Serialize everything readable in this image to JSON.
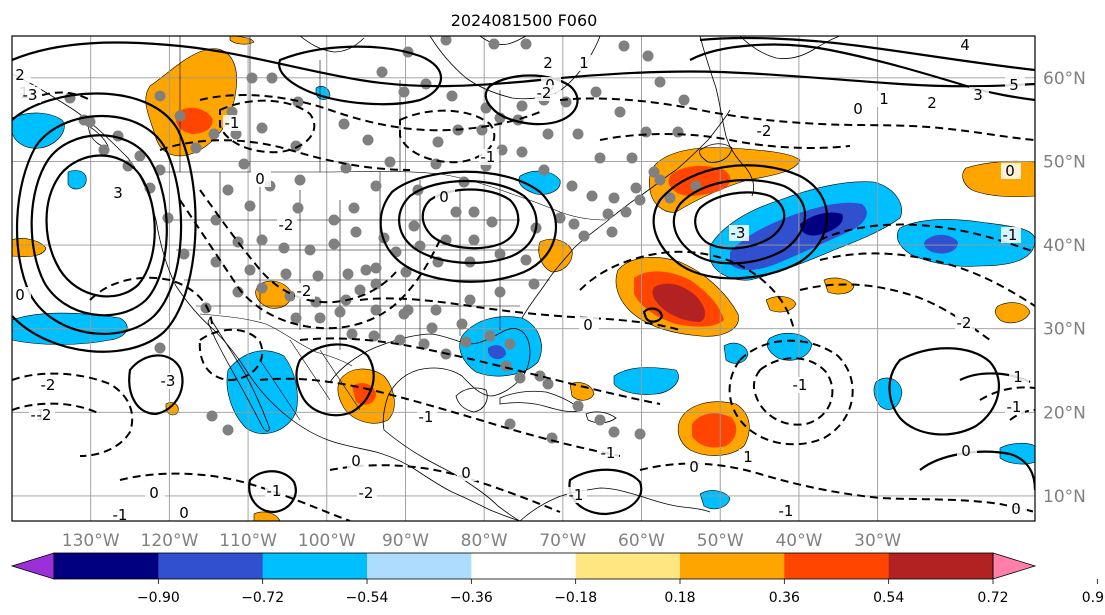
{
  "title": "2024081500 F060",
  "map": {
    "lon_ticks": [
      "130°W",
      "120°W",
      "110°W",
      "100°W",
      "90°W",
      "80°W",
      "70°W",
      "60°W",
      "50°W",
      "40°W",
      "30°W"
    ],
    "lat_ticks": [
      "60°N",
      "50°N",
      "40°N",
      "30°N",
      "20°N",
      "10°N"
    ],
    "lon_range": [
      -140,
      -10
    ],
    "lat_range": [
      7,
      65
    ],
    "contour_labels": [
      "2",
      "1",
      "0",
      "3",
      "-2",
      "-1",
      "-3",
      "5",
      "4",
      "0",
      "1",
      "2",
      "-2",
      "-3",
      "3",
      "2",
      "0",
      "-1",
      "-2",
      "0",
      "1",
      "-1",
      "0",
      "-2",
      "-3",
      "-2",
      "0",
      "-1",
      "-2",
      "0",
      "-1",
      "-1",
      "-1",
      "0",
      "1",
      "0",
      "-1",
      "-2",
      "-2",
      "-1",
      "0",
      "-1",
      "0",
      "-1",
      "1",
      "0",
      "-1",
      "0",
      "0"
    ]
  },
  "colorbar": {
    "tick_labels": [
      "−0.90",
      "−0.72",
      "−0.54",
      "−0.36",
      "−0.18",
      "0.18",
      "0.36",
      "0.54",
      "0.72",
      "0.90"
    ],
    "colors": {
      "under": "#9b30d9",
      "c1": "#000080",
      "c2": "#3050d0",
      "c3": "#00bfff",
      "c4": "#aedcff",
      "c5": "#ffffff",
      "c6": "#ffe680",
      "c7": "#ffa500",
      "c8": "#ff4500",
      "c9": "#b22222",
      "over": "#ff7faa"
    }
  }
}
